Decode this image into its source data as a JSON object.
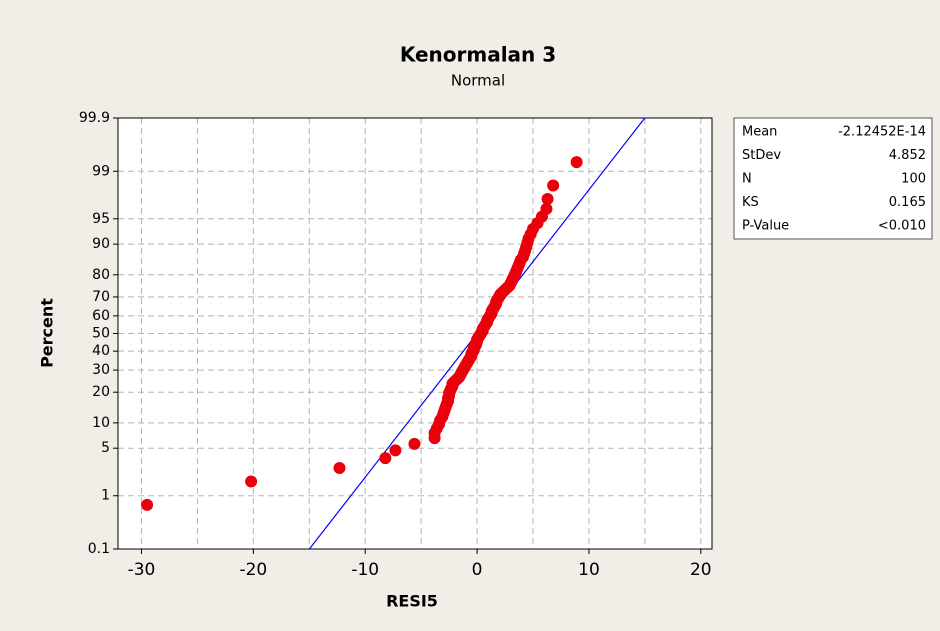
{
  "chart_data": {
    "type": "probability",
    "title": "Kenormalan 3",
    "subtitle": "Normal",
    "x_label": "RESI5",
    "y_label": "Percent",
    "xlim": [
      -32.1,
      21
    ],
    "ylim": [
      0.1,
      99.9
    ],
    "xticks": [
      -30,
      -20,
      -10,
      0,
      10,
      20
    ],
    "xgrid": [
      -30,
      -25,
      -20,
      -15,
      -10,
      -5,
      0,
      5,
      10,
      15,
      20
    ],
    "yticks": [
      0.1,
      1,
      5,
      10,
      20,
      30,
      40,
      50,
      60,
      70,
      80,
      90,
      95,
      99,
      99.9
    ],
    "grid": true,
    "point_color": "#e8000b",
    "line_color": "#0000ff",
    "x": [
      -29.5,
      -20.2,
      -12.3,
      -8.2,
      -7.3,
      -5.6,
      -3.8,
      -3.8,
      -3.6,
      -3.4,
      -3.3,
      -3.1,
      -3.0,
      -2.9,
      -2.8,
      -2.7,
      -2.6,
      -2.6,
      -2.5,
      -2.5,
      -2.4,
      -2.3,
      -2.2,
      -2.2,
      -2.0,
      -1.8,
      -1.6,
      -1.5,
      -1.4,
      -1.3,
      -1.2,
      -1.1,
      -1.0,
      -0.9,
      -0.8,
      -0.7,
      -0.6,
      -0.5,
      -0.5,
      -0.4,
      -0.3,
      -0.3,
      -0.2,
      -0.1,
      -0.1,
      0.0,
      0.0,
      0.1,
      0.2,
      0.3,
      0.4,
      0.5,
      0.5,
      0.6,
      0.7,
      0.8,
      0.9,
      0.9,
      1.0,
      1.1,
      1.2,
      1.3,
      1.3,
      1.4,
      1.5,
      1.6,
      1.7,
      1.7,
      1.8,
      1.9,
      2.0,
      2.1,
      2.3,
      2.5,
      2.7,
      2.9,
      3.0,
      3.1,
      3.2,
      3.3,
      3.4,
      3.5,
      3.6,
      3.7,
      3.8,
      3.9,
      4.1,
      4.2,
      4.3,
      4.4,
      4.5,
      4.6,
      4.8,
      5.0,
      5.4,
      5.8,
      6.2,
      6.3,
      6.8,
      8.9
    ],
    "values": [
      0.7,
      1.69,
      2.69,
      3.69,
      4.68,
      5.68,
      6.67,
      7.67,
      8.67,
      9.66,
      10.66,
      11.65,
      12.65,
      13.65,
      14.64,
      15.64,
      16.63,
      17.63,
      18.63,
      19.62,
      20.62,
      21.61,
      22.61,
      23.61,
      24.6,
      25.6,
      26.59,
      27.59,
      28.59,
      29.58,
      30.58,
      31.57,
      32.57,
      33.57,
      34.56,
      35.56,
      36.55,
      37.55,
      38.55,
      39.54,
      40.54,
      41.53,
      42.53,
      43.53,
      44.52,
      45.52,
      46.51,
      47.51,
      48.51,
      49.5,
      50.5,
      51.49,
      52.49,
      53.49,
      54.48,
      55.48,
      56.47,
      57.47,
      58.47,
      59.46,
      60.46,
      61.45,
      62.45,
      63.45,
      64.44,
      65.44,
      66.43,
      67.43,
      68.43,
      69.42,
      70.42,
      71.41,
      72.41,
      73.41,
      74.4,
      75.4,
      76.39,
      77.39,
      78.39,
      79.38,
      80.38,
      81.37,
      82.37,
      83.37,
      84.36,
      85.36,
      86.35,
      87.35,
      88.35,
      89.34,
      90.34,
      91.33,
      92.33,
      93.33,
      94.32,
      95.32,
      96.31,
      97.31,
      98.31,
      99.3
    ],
    "stats": [
      {
        "label": "Mean",
        "value": "-2.12452E-14"
      },
      {
        "label": "StDev",
        "value": "4.852"
      },
      {
        "label": "N",
        "value": "100"
      },
      {
        "label": "KS",
        "value": "0.165"
      },
      {
        "label": "P-Value",
        "value": "<0.010"
      }
    ]
  }
}
